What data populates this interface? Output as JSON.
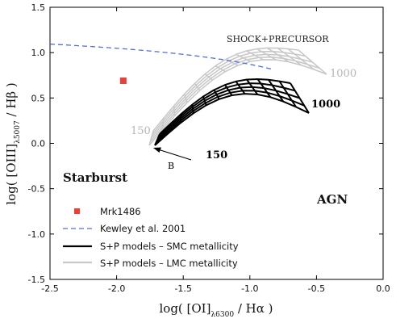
{
  "chart_data": {
    "type": "line",
    "xlabel": {
      "prefix": "log( [OI]",
      "sub": "λ6300",
      "suffix": " / Hα )"
    },
    "ylabel": {
      "prefix": "log( [OIII]",
      "sub": "λ5007",
      "suffix": " / Hβ )"
    },
    "xlim": [
      -2.5,
      0.0
    ],
    "ylim": [
      -1.5,
      1.5
    ],
    "x_ticks": [
      -2.5,
      -2.0,
      -1.5,
      -1.0,
      -0.5,
      0.0
    ],
    "x_tick_labels": [
      "-2.5",
      "-2.0",
      "-1.5",
      "-1.0",
      "-0.5",
      "0.0"
    ],
    "y_ticks": [
      -1.5,
      -1.0,
      -0.5,
      0.0,
      0.5,
      1.0,
      1.5
    ],
    "y_tick_labels": [
      "-1.5",
      "-1.0",
      "-0.5",
      "0.0",
      "0.5",
      "1.0",
      "1.5"
    ],
    "grid": false,
    "legend_position": "bottom-left",
    "colors": {
      "mrk": "#e8413a",
      "kewley": "#4f6fe0",
      "smc": "#000000",
      "lmc": "#c9c9c9"
    },
    "series": [
      {
        "name": "Mrk1486",
        "kind": "point",
        "x": -1.95,
        "y": 0.69
      },
      {
        "name": "Kewley et al. 2001",
        "kind": "curve",
        "formula": "y = 0.73/(x - 0.59) + 1.33",
        "x_range": [
          -2.5,
          -0.83
        ]
      },
      {
        "name": "S+P models – SMC metallicity",
        "kind": "grid",
        "shock_velocity_km_s": [
          150,
          1000
        ]
      },
      {
        "name": "S+P models – LMC metallicity",
        "kind": "grid",
        "shock_velocity_km_s": [
          150,
          1000
        ]
      }
    ],
    "annotations": {
      "shock": "SHOCK+PRECURSOR",
      "starburst": "Starburst",
      "agn": "AGN",
      "smc_low": "150",
      "smc_high": "1000",
      "lmc_low": "150",
      "lmc_high": "1000",
      "arrow": "B"
    }
  }
}
